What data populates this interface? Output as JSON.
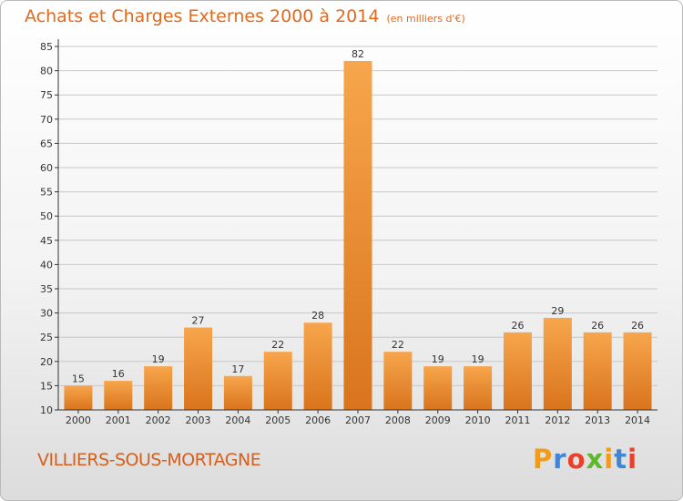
{
  "header": {
    "title": "Achats et Charges Externes 2000 à 2014",
    "unit": "(en milliers d'€)"
  },
  "footer": {
    "commune": "VILLIERS-SOUS-MORTAGNE",
    "brand_letters": [
      "P",
      "r",
      "o",
      "x",
      "i",
      "t",
      "i"
    ],
    "brand_colors": [
      "#f29a1a",
      "#3f86d6",
      "#e8402a",
      "#5fb82b",
      "#f29a1a",
      "#3f86d6",
      "#e8402a"
    ]
  },
  "colors": {
    "bar_light": "#f7a64d",
    "bar_dark": "#d9741c",
    "title": "#e06a20",
    "axis": "#333333",
    "grid": "#c8c8c8"
  },
  "chart_data": {
    "type": "bar",
    "categories": [
      "2000",
      "2001",
      "2002",
      "2003",
      "2004",
      "2005",
      "2006",
      "2007",
      "2008",
      "2009",
      "2010",
      "2011",
      "2012",
      "2013",
      "2014"
    ],
    "values": [
      15,
      16,
      19,
      27,
      17,
      22,
      28,
      82,
      22,
      19,
      19,
      26,
      29,
      26,
      26
    ],
    "title": "Achats et Charges Externes 2000 à 2014",
    "xlabel": "",
    "ylabel": "",
    "ylim": [
      10,
      85
    ],
    "yticks": [
      10,
      15,
      20,
      25,
      30,
      35,
      40,
      45,
      50,
      55,
      60,
      65,
      70,
      75,
      80,
      85
    ],
    "grid": true,
    "data_labels": true
  }
}
